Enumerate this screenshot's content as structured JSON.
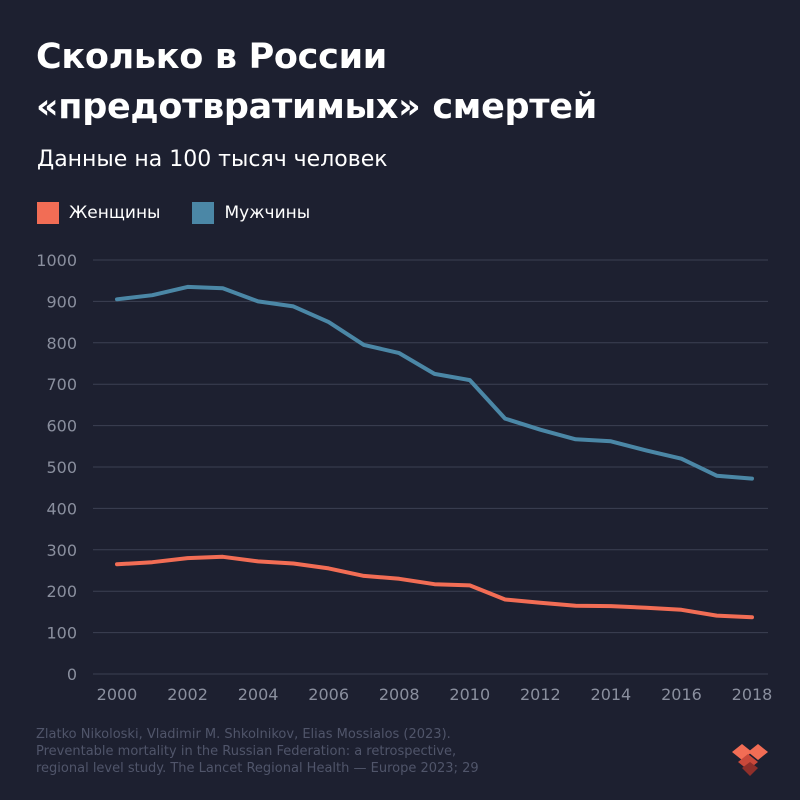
{
  "title": "Сколько в России «предотвратимых» смертей",
  "subtitle": "Данные на 100 тысяч человек",
  "colors": {
    "background": "#1d2030",
    "women": "#f26d55",
    "men": "#4b87a6",
    "grid": "#3c4052",
    "tick_text": "#8a8f9e"
  },
  "source_lines": [
    "Zlatko Nikoloski, Vladimir M. Shkolnikov, Elias Mossialos (2023).",
    "Preventable mortality in the Russian Federation: a retrospective,",
    "regional level study. The Lancet Regional Health — Europe 2023; 29"
  ],
  "chart_data": {
    "type": "line",
    "title": "Сколько в России «предотвратимых» смертей",
    "subtitle": "Данные на 100 тысяч человек",
    "xlabel": "",
    "ylabel": "",
    "x": [
      2000,
      2001,
      2002,
      2003,
      2004,
      2005,
      2006,
      2007,
      2008,
      2009,
      2010,
      2011,
      2012,
      2013,
      2014,
      2015,
      2016,
      2017,
      2018
    ],
    "xlim": [
      2000,
      2018
    ],
    "ylim": [
      0,
      1000
    ],
    "x_ticks": [
      2000,
      2002,
      2004,
      2006,
      2008,
      2010,
      2012,
      2014,
      2016,
      2018
    ],
    "y_ticks": [
      0,
      100,
      200,
      300,
      400,
      500,
      600,
      700,
      800,
      900,
      1000
    ],
    "grid": true,
    "legend_position": "top-left",
    "series": [
      {
        "name": "Женщины",
        "color": "#f26d55",
        "values": [
          265,
          270,
          280,
          283,
          272,
          267,
          255,
          237,
          230,
          217,
          214,
          180,
          172,
          165,
          164,
          160,
          155,
          141,
          137
        ]
      },
      {
        "name": "Мужчины",
        "color": "#4b87a6",
        "values": [
          905,
          915,
          935,
          932,
          900,
          888,
          850,
          795,
          775,
          725,
          710,
          617,
          590,
          567,
          562,
          540,
          520,
          479,
          472
        ]
      }
    ]
  }
}
